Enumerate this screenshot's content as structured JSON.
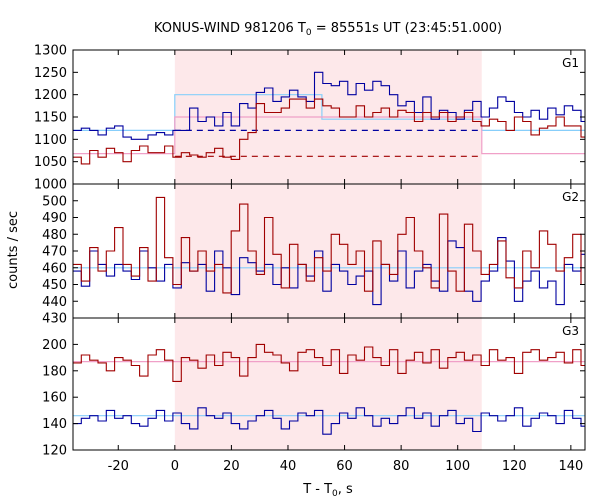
{
  "chart_data": {
    "type": "line",
    "title": {
      "main": "KONUS-WIND 981206 T",
      "sub": "0",
      "rest": " = 85551s UT (23:45:51.000)"
    },
    "xlabel": {
      "main": "T - T",
      "sub": "0",
      "rest": ", s"
    },
    "ylabel": "counts / sec",
    "xlim": [
      -36,
      145
    ],
    "x_ticks": [
      -20,
      0,
      20,
      40,
      60,
      80,
      100,
      120,
      140
    ],
    "highlight_interval": [
      0,
      108.5
    ],
    "colors": {
      "highlight": "#fde8ea",
      "high_energy_trace": "#0000a0",
      "low_energy_trace": "#a00000",
      "fit_blue": "#87cefa",
      "fit_pink": "#f0a0c8",
      "dashed_blue": "#0000a0",
      "dashed_red": "#a00000"
    },
    "panels": [
      {
        "label": "G1",
        "ylim": [
          1000,
          1300
        ],
        "y_ticks": [
          1000,
          1050,
          1100,
          1150,
          1200,
          1250,
          1300
        ],
        "series": [
          {
            "role": "blue",
            "x0": -36,
            "dx": 2.944,
            "values": [
              1120,
              1125,
              1120,
              1110,
              1125,
              1130,
              1105,
              1100,
              1100,
              1110,
              1115,
              1110,
              1120,
              1120,
              1170,
              1140,
              1150,
              1130,
              1160,
              1130,
              1180,
              1170,
              1205,
              1215,
              1185,
              1195,
              1210,
              1195,
              1185,
              1250,
              1225,
              1220,
              1230,
              1200,
              1225,
              1210,
              1230,
              1220,
              1200,
              1175,
              1185,
              1160,
              1195,
              1145,
              1165,
              1160,
              1145,
              1165,
              1185,
              1150,
              1170,
              1195,
              1185,
              1160,
              1150,
              1165,
              1145,
              1170,
              1155,
              1175,
              1165,
              1140,
              1160,
              1125,
              1155,
              1140,
              1120,
              1135,
              1145,
              1120,
              1110,
              1135,
              1140,
              1120,
              1125,
              1120,
              1130,
              1125,
              1110,
              1110,
              1100,
              1130,
              1115,
              1145,
              1120,
              1130,
              1115,
              1110,
              1125,
              1115,
              1140,
              1130,
              1130,
              1120,
              1115,
              1110,
              1135,
              1120,
              1120,
              1115
            ]
          },
          {
            "role": "red",
            "x0": -36,
            "dx": 2.944,
            "values": [
              1060,
              1045,
              1075,
              1060,
              1080,
              1070,
              1050,
              1075,
              1085,
              1070,
              1070,
              1085,
              1060,
              1070,
              1065,
              1060,
              1070,
              1080,
              1060,
              1055,
              1100,
              1115,
              1180,
              1160,
              1160,
              1170,
              1190,
              1190,
              1170,
              1190,
              1175,
              1170,
              1150,
              1150,
              1175,
              1150,
              1160,
              1170,
              1150,
              1165,
              1160,
              1140,
              1160,
              1150,
              1160,
              1140,
              1150,
              1160,
              1140,
              1130,
              1145,
              1140,
              1120,
              1150,
              1140,
              1110,
              1125,
              1130,
              1150,
              1130,
              1130,
              1105,
              1105,
              1080,
              1125,
              1105,
              1090,
              1060,
              1110,
              1080,
              1070,
              1085,
              1070,
              1060,
              1080,
              1070,
              1065,
              1075,
              1070,
              1075,
              1065,
              1070,
              1060,
              1075,
              1055,
              1065,
              1070,
              1060,
              1075,
              1050,
              1065,
              1060,
              1075,
              1055,
              1070,
              1060,
              1060,
              1070,
              1055,
              1065
            ]
          }
        ],
        "fits": [
          {
            "role": "fit_blue",
            "steps": [
              [
                -36,
                0,
                1120
              ],
              [
                0,
                52,
                1200
              ],
              [
                52,
                108.5,
                1145
              ],
              [
                108.5,
                145,
                1120
              ]
            ]
          },
          {
            "role": "fit_pink",
            "steps": [
              [
                -36,
                0,
                1068
              ],
              [
                0,
                108.5,
                1150
              ],
              [
                108.5,
                145,
                1068
              ]
            ]
          }
        ],
        "dashed": [
          {
            "role": "dashed_blue",
            "x": [
              0,
              108.5
            ],
            "y": 1120
          },
          {
            "role": "dashed_red",
            "x": [
              0,
              108.5
            ],
            "y": 1062
          }
        ]
      },
      {
        "label": "G2",
        "ylim": [
          430,
          510
        ],
        "y_ticks": [
          430,
          440,
          450,
          460,
          470,
          480,
          490,
          500
        ],
        "series": [
          {
            "role": "blue",
            "x0": -36,
            "dx": 2.944,
            "values": [
              458,
              449,
              470,
              462,
              455,
              462,
              458,
              453,
              470,
              460,
              452,
              462,
              448,
              463,
              458,
              462,
              446,
              470,
              460,
              444,
              466,
              463,
              458,
              462,
              450,
              460,
              448,
              462,
              455,
              470,
              446,
              462,
              458,
              450,
              455,
              458,
              438,
              462,
              452,
              470,
              448,
              458,
              462,
              452,
              446,
              476,
              472,
              446,
              440,
              452,
              458,
              478,
              464,
              440,
              452,
              458,
              448,
              452,
              438,
              462,
              458,
              468,
              440,
              452,
              464,
              446,
              462,
              452,
              470,
              456,
              462,
              448,
              458,
              465,
              450,
              462,
              470,
              458,
              445,
              462,
              470,
              450,
              444,
              456,
              468,
              446,
              462,
              470,
              458,
              452,
              466,
              450,
              461,
              448,
              472,
              462,
              456,
              452,
              466,
              460
            ]
          },
          {
            "role": "red",
            "x0": -36,
            "dx": 2.944,
            "values": [
              462,
              452,
              472,
              458,
              470,
              484,
              462,
              455,
              472,
              452,
              502,
              466,
              450,
              478,
              458,
              470,
              458,
              462,
              445,
              482,
              498,
              470,
              456,
              490,
              468,
              448,
              474,
              462,
              452,
              466,
              458,
              480,
              474,
              462,
              470,
              446,
              476,
              462,
              456,
              480,
              490,
              470,
              460,
              448,
              492,
              458,
              446,
              486,
              470,
              456,
              462,
              476,
              454,
              448,
              470,
              460,
              482,
              474,
              458,
              466,
              480,
              450,
              448,
              470,
              462,
              474,
              458,
              450,
              462,
              480,
              470,
              458,
              446,
              466,
              478,
              452,
              470,
              460,
              474,
              458,
              466,
              450,
              462,
              476,
              458,
              452,
              476,
              468,
              460,
              474,
              450,
              462,
              478,
              456,
              470,
              462,
              470,
              476,
              452,
              460
            ]
          }
        ],
        "fits": [
          {
            "role": "fit_blue",
            "steps": [
              [
                -36,
                145,
                460
              ]
            ]
          }
        ],
        "dashed": []
      },
      {
        "label": "G3",
        "ylim": [
          120,
          220
        ],
        "y_ticks": [
          120,
          140,
          160,
          180,
          200
        ],
        "series": [
          {
            "role": "red",
            "x0": -36,
            "dx": 2.944,
            "values": [
              186,
              192,
              188,
              186,
              180,
              190,
              188,
              184,
              176,
              192,
              196,
              188,
              172,
              190,
              188,
              182,
              192,
              184,
              194,
              190,
              176,
              190,
              200,
              194,
              192,
              186,
              180,
              194,
              196,
              190,
              184,
              196,
              178,
              192,
              188,
              198,
              190,
              184,
              196,
              178,
              188,
              194,
              186,
              196,
              182,
              190,
              194,
              188,
              192,
              184,
              196,
              188,
              190,
              178,
              194,
              196,
              188,
              190,
              194,
              186,
              196,
              184,
              192,
              190,
              182,
              196,
              190,
              188,
              194,
              178,
              190,
              196,
              192,
              188,
              196,
              190,
              194,
              188,
              186,
              200,
              192,
              186,
              190,
              182,
              190,
              194,
              188,
              176,
              192,
              190,
              186,
              182,
              188,
              192,
              178,
              190,
              188,
              184,
              190,
              186
            ]
          },
          {
            "role": "blue",
            "x0": -36,
            "dx": 2.944,
            "values": [
              140,
              144,
              146,
              142,
              150,
              144,
              146,
              140,
              138,
              144,
              150,
              142,
              148,
              140,
              136,
              152,
              146,
              144,
              148,
              140,
              136,
              142,
              146,
              150,
              144,
              136,
              142,
              148,
              146,
              150,
              132,
              140,
              148,
              144,
              152,
              146,
              138,
              144,
              140,
              146,
              152,
              144,
              148,
              138,
              146,
              150,
              140,
              144,
              134,
              148,
              146,
              142,
              146,
              152,
              138,
              144,
              148,
              146,
              140,
              150,
              144,
              138,
              142,
              146,
              152,
              144,
              140,
              138,
              146,
              148,
              150,
              144,
              140,
              148,
              142,
              146,
              144,
              138,
              150,
              144,
              146,
              140,
              144,
              142,
              148,
              140,
              152,
              144,
              138,
              150,
              146,
              140,
              148,
              142,
              146,
              150,
              144,
              140,
              146,
              144
            ]
          }
        ],
        "fits": [
          {
            "role": "fit_pink",
            "steps": [
              [
                -36,
                145,
                187
              ]
            ]
          },
          {
            "role": "fit_blue",
            "steps": [
              [
                -36,
                145,
                146
              ]
            ]
          }
        ],
        "dashed": []
      }
    ]
  }
}
